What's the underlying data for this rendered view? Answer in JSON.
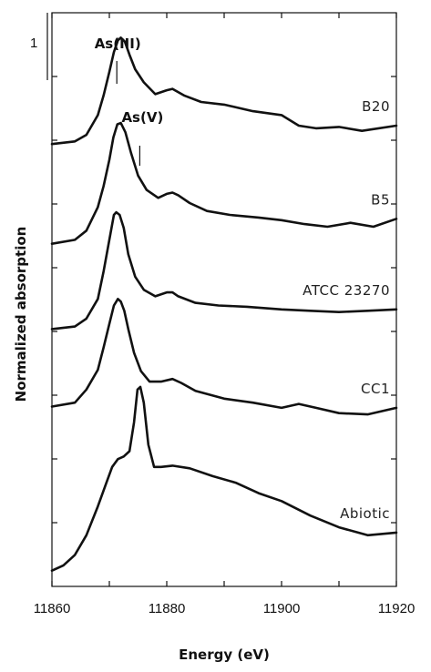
{
  "chart_data": {
    "type": "line",
    "title": "",
    "xlabel": "Energy (eV)",
    "ylabel": "Normalized absorption",
    "xlim": [
      11860,
      11920
    ],
    "x_ticks": [
      "11860",
      "11870",
      "11880",
      "11890",
      "11900",
      "11910",
      "11920"
    ],
    "x_tick_labels_shown": [
      "11860",
      "11880",
      "11900",
      "11920"
    ],
    "y_scale_label": "1",
    "annotations": [
      {
        "label": "As(III)",
        "x": 11871.3
      },
      {
        "label": "As(V)",
        "x": 11875.3
      }
    ],
    "series": [
      {
        "name": "B20",
        "x": [
          11860,
          11864,
          11866,
          11868,
          11869,
          11870,
          11870.8,
          11871.5,
          11872,
          11872.7,
          11873.5,
          11874.5,
          11876,
          11878,
          11880,
          11881,
          11883,
          11886,
          11890,
          11895,
          11900,
          11903,
          11906,
          11910,
          11914,
          11920
        ],
        "y": [
          3.25,
          3.27,
          3.32,
          3.47,
          3.62,
          3.8,
          3.95,
          4.04,
          4.06,
          4.03,
          3.93,
          3.82,
          3.72,
          3.63,
          3.66,
          3.67,
          3.62,
          3.57,
          3.55,
          3.5,
          3.47,
          3.39,
          3.37,
          3.38,
          3.35,
          3.39
        ]
      },
      {
        "name": "B5",
        "x": [
          11860,
          11864,
          11866,
          11868,
          11869,
          11870,
          11870.7,
          11871.4,
          11872,
          11872.8,
          11873.8,
          11875,
          11876.5,
          11878.5,
          11880,
          11881,
          11882,
          11884,
          11887,
          11891,
          11896,
          11900,
          11904,
          11908,
          11912,
          11916,
          11920
        ],
        "y": [
          2.49,
          2.52,
          2.59,
          2.77,
          2.93,
          3.13,
          3.3,
          3.4,
          3.41,
          3.34,
          3.18,
          3.01,
          2.9,
          2.84,
          2.87,
          2.88,
          2.86,
          2.8,
          2.74,
          2.71,
          2.69,
          2.67,
          2.64,
          2.62,
          2.65,
          2.62,
          2.68
        ]
      },
      {
        "name": "ATCC 23270",
        "x": [
          11860,
          11864,
          11866,
          11868,
          11869,
          11870,
          11870.8,
          11871.2,
          11871.8,
          11872.5,
          11873.3,
          11874.5,
          11876,
          11878,
          11880,
          11881,
          11882,
          11885,
          11889,
          11894,
          11900,
          11905,
          11910,
          11915,
          11920
        ],
        "y": [
          1.84,
          1.86,
          1.92,
          2.07,
          2.28,
          2.52,
          2.71,
          2.73,
          2.71,
          2.61,
          2.41,
          2.24,
          2.14,
          2.09,
          2.12,
          2.12,
          2.09,
          2.04,
          2.02,
          2.01,
          1.99,
          1.98,
          1.97,
          1.98,
          1.99
        ]
      },
      {
        "name": "CC1",
        "x": [
          11860,
          11864,
          11866,
          11868,
          11869,
          11870,
          11870.8,
          11871.5,
          11872,
          11872.6,
          11873.3,
          11874.3,
          11875.5,
          11877,
          11879,
          11881,
          11882.5,
          11885,
          11890,
          11895,
          11900,
          11903,
          11906,
          11910,
          11915,
          11920
        ],
        "y": [
          1.25,
          1.28,
          1.38,
          1.53,
          1.7,
          1.88,
          2.02,
          2.07,
          2.05,
          1.98,
          1.84,
          1.66,
          1.52,
          1.44,
          1.44,
          1.46,
          1.43,
          1.37,
          1.31,
          1.28,
          1.24,
          1.27,
          1.24,
          1.2,
          1.19,
          1.24
        ]
      },
      {
        "name": "Abiotic",
        "x": [
          11860,
          11862,
          11864,
          11866,
          11868,
          11869.5,
          11870.5,
          11871.5,
          11872.5,
          11873.5,
          11874.3,
          11874.9,
          11875.4,
          11876,
          11876.8,
          11877.8,
          11879,
          11881,
          11884,
          11888,
          11892,
          11896,
          11900,
          11905,
          11910,
          11915,
          11920
        ],
        "y": [
          0.0,
          0.04,
          0.12,
          0.27,
          0.49,
          0.67,
          0.79,
          0.85,
          0.87,
          0.91,
          1.13,
          1.38,
          1.4,
          1.28,
          0.96,
          0.79,
          0.79,
          0.8,
          0.78,
          0.72,
          0.67,
          0.59,
          0.53,
          0.42,
          0.33,
          0.27,
          0.29
        ]
      }
    ]
  }
}
